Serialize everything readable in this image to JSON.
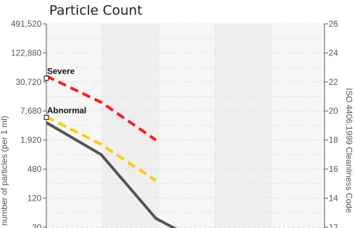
{
  "chart_data": {
    "type": "line",
    "title": "Particle Count",
    "ylabel": "number of particles (per 1 ml)",
    "y2label": "ISO 4406:1999 Cleanliness Code",
    "scale": "log",
    "left_ticks": [
      "491,520",
      "122,880",
      "30,720",
      "7,680",
      "1,920",
      "480",
      "120",
      "30"
    ],
    "left_tick_codes": [
      26,
      24,
      22,
      20,
      18,
      16,
      14,
      12
    ],
    "right_ticks": [
      "26",
      "24",
      "22",
      "20",
      "18",
      "16",
      "14",
      "12"
    ],
    "ylim_code": [
      11.4,
      26.3
    ],
    "grid": true,
    "series": [
      {
        "name": "Severe",
        "color": "#ff1a1a",
        "dashed": true,
        "width": 4,
        "points": [
          [
            0,
            22.4
          ],
          [
            1,
            20.6
          ],
          [
            2,
            18.0
          ]
        ]
      },
      {
        "name": "Abnormal",
        "color": "#ffcc00",
        "dashed": true,
        "width": 4,
        "points": [
          [
            0,
            19.6
          ],
          [
            1,
            17.7
          ],
          [
            2,
            15.2
          ]
        ]
      },
      {
        "name": "",
        "color": "#555555",
        "dashed": false,
        "width": 4,
        "points": [
          [
            0,
            19.2
          ],
          [
            1,
            17.0
          ],
          [
            2,
            12.6
          ],
          [
            2.6,
            11.4
          ]
        ]
      }
    ],
    "annotations": [
      {
        "text": "Severe",
        "at_code": 22.6
      },
      {
        "text": "Abnormal",
        "at_code": 19.9
      }
    ]
  }
}
